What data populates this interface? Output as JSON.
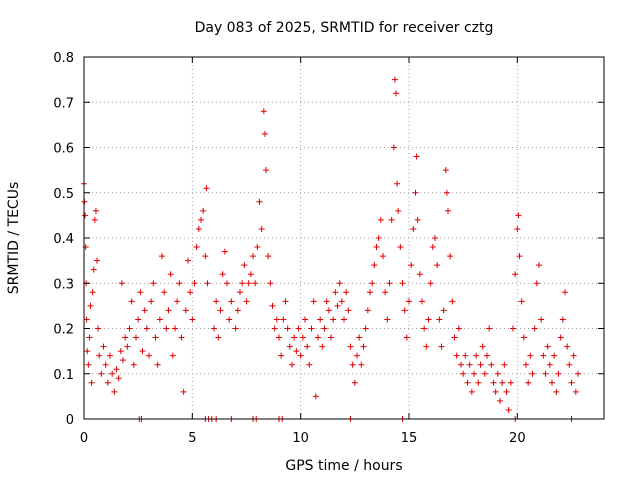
{
  "chart_data": {
    "type": "scatter",
    "title": "Day 083 of 2025, SRMTID for receiver cztg",
    "xlabel": "GPS time / hours",
    "ylabel": "SRMTID / TECUs",
    "xlim": [
      0,
      24
    ],
    "ylim": [
      0,
      0.8
    ],
    "xticks": [
      0,
      5,
      10,
      15,
      20
    ],
    "xtick_labels": [
      "0",
      "5",
      "10",
      "15",
      "20"
    ],
    "yticks": [
      0,
      0.1,
      0.2,
      0.3,
      0.4,
      0.5,
      0.6,
      0.7,
      0.8
    ],
    "ytick_labels": [
      "0",
      "0.1",
      "0.2",
      "0.3",
      "0.4",
      "0.5",
      "0.6",
      "0.7",
      "0.8"
    ],
    "grid": true,
    "marker": "+",
    "color": "#e00000",
    "series": [
      {
        "name": "SRMTID",
        "points": [
          [
            0.0,
            0.52
          ],
          [
            0.02,
            0.48
          ],
          [
            0.05,
            0.45
          ],
          [
            0.08,
            0.38
          ],
          [
            0.1,
            0.3
          ],
          [
            0.12,
            0.22
          ],
          [
            0.15,
            0.15
          ],
          [
            0.2,
            0.12
          ],
          [
            0.25,
            0.18
          ],
          [
            0.3,
            0.25
          ],
          [
            0.35,
            0.08
          ],
          [
            0.4,
            0.28
          ],
          [
            0.45,
            0.33
          ],
          [
            0.5,
            0.44
          ],
          [
            0.55,
            0.46
          ],
          [
            0.6,
            0.35
          ],
          [
            0.65,
            0.2
          ],
          [
            0.7,
            0.14
          ],
          [
            0.8,
            0.1
          ],
          [
            0.9,
            0.16
          ],
          [
            1.0,
            0.12
          ],
          [
            1.1,
            0.08
          ],
          [
            1.2,
            0.14
          ],
          [
            1.3,
            0.1
          ],
          [
            1.4,
            0.06
          ],
          [
            1.5,
            0.11
          ],
          [
            1.6,
            0.09
          ],
          [
            1.7,
            0.15
          ],
          [
            1.8,
            0.13
          ],
          [
            1.9,
            0.18
          ],
          [
            1.75,
            0.3
          ],
          [
            2.0,
            0.16
          ],
          [
            2.1,
            0.2
          ],
          [
            2.2,
            0.26
          ],
          [
            2.3,
            0.12
          ],
          [
            2.4,
            0.18
          ],
          [
            2.5,
            0.22
          ],
          [
            2.6,
            0.28
          ],
          [
            2.7,
            0.15
          ],
          [
            2.8,
            0.24
          ],
          [
            2.9,
            0.2
          ],
          [
            3.0,
            0.14
          ],
          [
            3.1,
            0.26
          ],
          [
            3.2,
            0.3
          ],
          [
            3.3,
            0.18
          ],
          [
            3.4,
            0.12
          ],
          [
            3.5,
            0.22
          ],
          [
            3.6,
            0.36
          ],
          [
            3.7,
            0.28
          ],
          [
            3.8,
            0.2
          ],
          [
            3.9,
            0.24
          ],
          [
            4.0,
            0.32
          ],
          [
            4.1,
            0.14
          ],
          [
            4.2,
            0.2
          ],
          [
            4.3,
            0.26
          ],
          [
            4.4,
            0.3
          ],
          [
            4.5,
            0.18
          ],
          [
            4.6,
            0.06
          ],
          [
            4.7,
            0.24
          ],
          [
            4.8,
            0.35
          ],
          [
            4.9,
            0.28
          ],
          [
            5.0,
            0.22
          ],
          [
            5.1,
            0.3
          ],
          [
            5.2,
            0.38
          ],
          [
            5.3,
            0.42
          ],
          [
            5.4,
            0.44
          ],
          [
            5.5,
            0.46
          ],
          [
            5.6,
            0.36
          ],
          [
            5.65,
            0.51
          ],
          [
            5.7,
            0.3
          ],
          [
            6.0,
            0.2
          ],
          [
            6.1,
            0.26
          ],
          [
            6.2,
            0.18
          ],
          [
            6.3,
            0.24
          ],
          [
            6.4,
            0.32
          ],
          [
            6.5,
            0.37
          ],
          [
            6.6,
            0.3
          ],
          [
            6.7,
            0.22
          ],
          [
            6.8,
            0.26
          ],
          [
            7.0,
            0.2
          ],
          [
            7.1,
            0.24
          ],
          [
            7.2,
            0.28
          ],
          [
            7.3,
            0.3
          ],
          [
            7.4,
            0.34
          ],
          [
            7.5,
            0.26
          ],
          [
            7.6,
            0.3
          ],
          [
            7.7,
            0.32
          ],
          [
            7.8,
            0.36
          ],
          [
            7.9,
            0.3
          ],
          [
            8.0,
            0.38
          ],
          [
            8.1,
            0.48
          ],
          [
            8.2,
            0.42
          ],
          [
            8.3,
            0.68
          ],
          [
            8.35,
            0.63
          ],
          [
            8.4,
            0.55
          ],
          [
            8.5,
            0.36
          ],
          [
            8.6,
            0.3
          ],
          [
            8.7,
            0.25
          ],
          [
            8.8,
            0.2
          ],
          [
            8.9,
            0.22
          ],
          [
            9.0,
            0.18
          ],
          [
            9.1,
            0.14
          ],
          [
            9.2,
            0.22
          ],
          [
            9.3,
            0.26
          ],
          [
            9.4,
            0.2
          ],
          [
            9.5,
            0.16
          ],
          [
            9.6,
            0.12
          ],
          [
            9.7,
            0.18
          ],
          [
            9.8,
            0.15
          ],
          [
            9.9,
            0.2
          ],
          [
            10.0,
            0.14
          ],
          [
            10.1,
            0.18
          ],
          [
            10.2,
            0.22
          ],
          [
            10.3,
            0.16
          ],
          [
            10.4,
            0.12
          ],
          [
            10.5,
            0.2
          ],
          [
            10.6,
            0.26
          ],
          [
            10.7,
            0.05
          ],
          [
            10.8,
            0.18
          ],
          [
            10.9,
            0.22
          ],
          [
            11.0,
            0.16
          ],
          [
            11.1,
            0.2
          ],
          [
            11.2,
            0.26
          ],
          [
            11.3,
            0.24
          ],
          [
            11.4,
            0.18
          ],
          [
            11.5,
            0.22
          ],
          [
            11.6,
            0.28
          ],
          [
            11.7,
            0.25
          ],
          [
            11.8,
            0.3
          ],
          [
            11.9,
            0.26
          ],
          [
            12.0,
            0.22
          ],
          [
            12.1,
            0.28
          ],
          [
            12.2,
            0.24
          ],
          [
            12.3,
            0.16
          ],
          [
            12.4,
            0.12
          ],
          [
            12.5,
            0.08
          ],
          [
            12.6,
            0.14
          ],
          [
            12.7,
            0.18
          ],
          [
            12.8,
            0.12
          ],
          [
            12.9,
            0.16
          ],
          [
            13.0,
            0.2
          ],
          [
            13.1,
            0.24
          ],
          [
            13.2,
            0.28
          ],
          [
            13.3,
            0.3
          ],
          [
            13.4,
            0.34
          ],
          [
            13.5,
            0.38
          ],
          [
            13.6,
            0.4
          ],
          [
            13.7,
            0.44
          ],
          [
            13.8,
            0.36
          ],
          [
            13.9,
            0.28
          ],
          [
            14.0,
            0.22
          ],
          [
            14.1,
            0.3
          ],
          [
            14.2,
            0.44
          ],
          [
            14.3,
            0.6
          ],
          [
            14.35,
            0.75
          ],
          [
            14.4,
            0.72
          ],
          [
            14.45,
            0.52
          ],
          [
            14.5,
            0.46
          ],
          [
            14.6,
            0.38
          ],
          [
            14.7,
            0.3
          ],
          [
            14.8,
            0.24
          ],
          [
            14.9,
            0.18
          ],
          [
            15.0,
            0.26
          ],
          [
            15.1,
            0.34
          ],
          [
            15.2,
            0.42
          ],
          [
            15.3,
            0.5
          ],
          [
            15.35,
            0.58
          ],
          [
            15.4,
            0.44
          ],
          [
            15.5,
            0.32
          ],
          [
            15.6,
            0.26
          ],
          [
            15.7,
            0.2
          ],
          [
            15.8,
            0.16
          ],
          [
            15.9,
            0.22
          ],
          [
            16.0,
            0.3
          ],
          [
            16.1,
            0.38
          ],
          [
            16.2,
            0.4
          ],
          [
            16.3,
            0.34
          ],
          [
            16.4,
            0.22
          ],
          [
            16.5,
            0.16
          ],
          [
            16.6,
            0.24
          ],
          [
            16.7,
            0.55
          ],
          [
            16.75,
            0.5
          ],
          [
            16.8,
            0.46
          ],
          [
            16.9,
            0.36
          ],
          [
            17.0,
            0.26
          ],
          [
            17.1,
            0.18
          ],
          [
            17.2,
            0.14
          ],
          [
            17.3,
            0.2
          ],
          [
            17.4,
            0.12
          ],
          [
            17.5,
            0.1
          ],
          [
            17.6,
            0.14
          ],
          [
            17.7,
            0.08
          ],
          [
            17.8,
            0.12
          ],
          [
            17.9,
            0.06
          ],
          [
            18.0,
            0.1
          ],
          [
            18.1,
            0.14
          ],
          [
            18.2,
            0.08
          ],
          [
            18.3,
            0.12
          ],
          [
            18.4,
            0.16
          ],
          [
            18.5,
            0.1
          ],
          [
            18.6,
            0.14
          ],
          [
            18.7,
            0.2
          ],
          [
            18.8,
            0.12
          ],
          [
            18.9,
            0.08
          ],
          [
            19.0,
            0.06
          ],
          [
            19.1,
            0.1
          ],
          [
            19.2,
            0.04
          ],
          [
            19.3,
            0.08
          ],
          [
            19.4,
            0.12
          ],
          [
            19.5,
            0.06
          ],
          [
            19.6,
            0.02
          ],
          [
            19.7,
            0.08
          ],
          [
            19.8,
            0.2
          ],
          [
            19.9,
            0.32
          ],
          [
            20.0,
            0.42
          ],
          [
            20.05,
            0.45
          ],
          [
            20.1,
            0.36
          ],
          [
            20.2,
            0.26
          ],
          [
            20.3,
            0.18
          ],
          [
            20.4,
            0.12
          ],
          [
            20.5,
            0.08
          ],
          [
            20.6,
            0.14
          ],
          [
            20.7,
            0.1
          ],
          [
            20.8,
            0.2
          ],
          [
            20.9,
            0.3
          ],
          [
            21.0,
            0.34
          ],
          [
            21.1,
            0.22
          ],
          [
            21.2,
            0.14
          ],
          [
            21.3,
            0.1
          ],
          [
            21.4,
            0.16
          ],
          [
            21.5,
            0.12
          ],
          [
            21.6,
            0.08
          ],
          [
            21.7,
            0.14
          ],
          [
            21.8,
            0.06
          ],
          [
            21.9,
            0.1
          ],
          [
            22.0,
            0.18
          ],
          [
            22.1,
            0.22
          ],
          [
            22.2,
            0.28
          ],
          [
            22.3,
            0.16
          ],
          [
            22.4,
            0.12
          ],
          [
            22.5,
            0.08
          ],
          [
            22.6,
            0.14
          ],
          [
            22.7,
            0.06
          ],
          [
            22.8,
            0.1
          ],
          [
            2.55,
            0.0
          ],
          [
            2.65,
            0.0
          ],
          [
            5.6,
            0.0
          ],
          [
            5.75,
            0.0
          ],
          [
            5.9,
            0.0
          ],
          [
            6.1,
            0.0
          ],
          [
            6.8,
            0.0
          ],
          [
            7.8,
            0.0
          ],
          [
            7.95,
            0.0
          ],
          [
            9.0,
            0.0
          ],
          [
            9.15,
            0.0
          ],
          [
            12.3,
            0.0
          ],
          [
            14.7,
            0.0
          ],
          [
            19.9,
            0.0
          ],
          [
            22.5,
            0.0
          ]
        ]
      }
    ]
  }
}
